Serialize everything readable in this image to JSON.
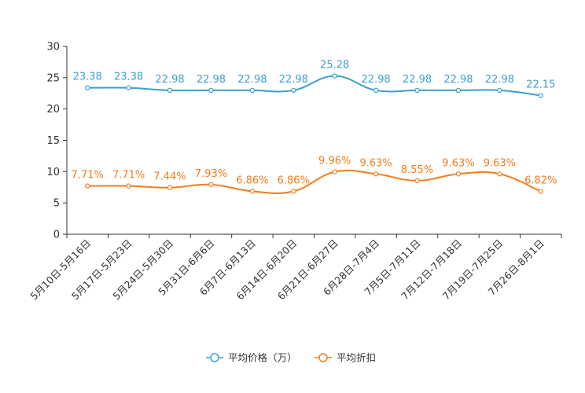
{
  "chart_data": {
    "type": "line",
    "categories": [
      "5月10日-5月16日",
      "5月17日-5月23日",
      "5月24日-5月30日",
      "5月31日-6月6日",
      "6月7日-6月13日",
      "6月14日-6月20日",
      "6月21日-6月27日",
      "6月28日-7月4日",
      "7月5日-7月11日",
      "7月12日-7月18日",
      "7月19日-7月25日",
      "7月26日-8月1日"
    ],
    "ylim": [
      0,
      30
    ],
    "yticks": [
      "0",
      "5",
      "10",
      "15",
      "20",
      "25",
      "30"
    ],
    "series": [
      {
        "name": "平均价格（万）",
        "color": "#3a9fd1",
        "values": [
          23.38,
          23.38,
          22.98,
          22.98,
          22.98,
          22.98,
          25.28,
          22.98,
          22.98,
          22.98,
          22.98,
          22.15
        ],
        "labels": [
          "23.38",
          "23.38",
          "22.98",
          "22.98",
          "22.98",
          "22.98",
          "25.28",
          "22.98",
          "22.98",
          "22.98",
          "22.98",
          "22.15"
        ]
      },
      {
        "name": "平均折扣",
        "color": "#f47c1c",
        "values": [
          7.71,
          7.71,
          7.44,
          7.93,
          6.86,
          6.86,
          9.96,
          9.63,
          8.55,
          9.63,
          9.63,
          6.82
        ],
        "labels": [
          "7.71%",
          "7.71%",
          "7.44%",
          "7.93%",
          "6.86%",
          "6.86%",
          "9.96%",
          "9.63%",
          "8.55%",
          "9.63%",
          "9.63%",
          "6.82%"
        ]
      }
    ],
    "legend_position": "bottom-center"
  }
}
